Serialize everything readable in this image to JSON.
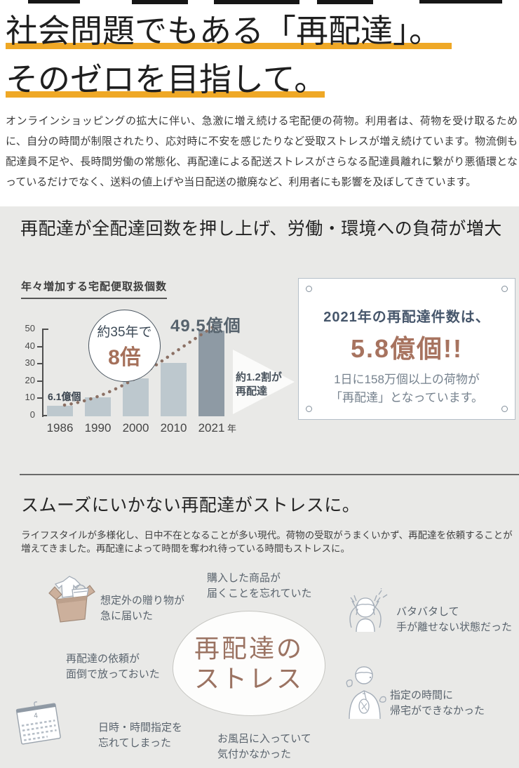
{
  "hero": {
    "title_line1": "社会問題でもある「再配達」。",
    "title_line2": "そのゼロを目指して。",
    "underline_color": "#efa826"
  },
  "intro": {
    "text": "オンラインショッピングの拡大に伴い、急激に増え続ける宅配便の荷物。利用者は、荷物を受け取るために、自分の時間が制限されたり、応対時に不安を感じたりなど受取ストレスが増え続けています。物流側も配達員不足や、長時間労働の常態化、再配達による配送ストレスがさらなる配達員離れに繋がり悪循環となっているだけでなく、送料の値上げや当日配送の撤廃など、利用者にも影響を及ぼしてきています。"
  },
  "section1": {
    "heading": "再配達が全配達回数を押し上げ、労働・環境への負荷が増大",
    "highlight_box": {
      "line1": "2021年の再配達件数は、",
      "big": "5.8億個!!",
      "desc1": "1日に158万個以上の荷物が",
      "desc2": "「再配達」となっています。",
      "accent_color": "#a7735f",
      "title_color": "#46566b"
    }
  },
  "chart_data": {
    "type": "bar",
    "title": "年々増加する宅配便取扱個数",
    "categories": [
      "1986",
      "1990",
      "2000",
      "2010",
      "2021"
    ],
    "values": [
      6.1,
      11,
      22,
      31,
      49.5
    ],
    "xlabel_unit": "年",
    "ylabel": "",
    "ylim": [
      0,
      50
    ],
    "yticks": [
      0,
      10,
      20,
      30,
      40,
      50
    ],
    "grid": false,
    "bar_color": "#bdc8ce",
    "highlight_bar_color": "#8e9aa4",
    "highlight_index": 4,
    "annotations": {
      "first_bar_label": "6.1億個",
      "last_bar_label": "49.5億個",
      "badge_line1": "約35年で",
      "badge_line2": "8倍",
      "arrow_line1": "約1.2割が",
      "arrow_line2": "再配達"
    }
  },
  "section2": {
    "heading": "スムーズにいかない再配達がストレスに。",
    "body": "ライフスタイルが多様化し、日中不在となることが多い現代。荷物の受取がうまくいかず、再配達を依頼することが増えてきました。再配達によって時間を奪われ待っている時間もストレスに。",
    "stress_bubble": {
      "line1": "再配達の",
      "line2": "ストレス",
      "text_color": "#9b7362"
    },
    "items": [
      {
        "icon": "gift-box",
        "text1": "想定外の贈り物が",
        "text2": "急に届いた"
      },
      {
        "icon": null,
        "text1": "購入した商品が",
        "text2": "届くことを忘れていた"
      },
      {
        "icon": "panic-person",
        "text1": "バタバタして",
        "text2": "手が離せない状態だった"
      },
      {
        "icon": null,
        "text1": "再配達の依頼が",
        "text2": "面倒で放っておいた"
      },
      {
        "icon": "bowing-person",
        "text1": "指定の時間に",
        "text2": "帰宅ができなかった"
      },
      {
        "icon": "calendar",
        "text1": "日時・時間指定を",
        "text2": "忘れてしまった",
        "calendar_label": "4"
      },
      {
        "icon": null,
        "text1": "お風呂に入っていて",
        "text2": "気付かなかった"
      }
    ]
  }
}
